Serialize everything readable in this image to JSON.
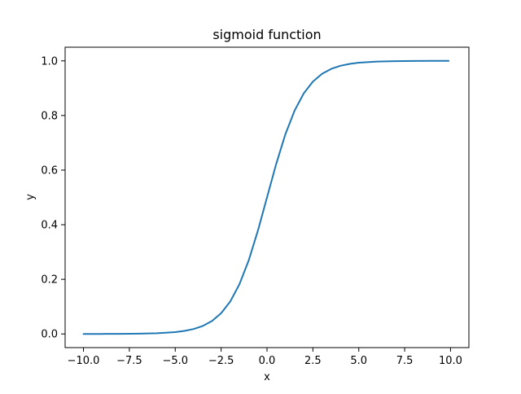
{
  "chart_data": {
    "type": "line",
    "title": "sigmoid function",
    "xlabel": "x",
    "ylabel": "y",
    "xlim": [
      -11.0,
      11.0
    ],
    "ylim": [
      -0.05,
      1.05
    ],
    "xticks": [
      -10.0,
      -7.5,
      -5.0,
      -2.5,
      0.0,
      2.5,
      5.0,
      7.5,
      10.0
    ],
    "xtick_labels": [
      "−10.0",
      "−7.5",
      "−5.0",
      "−2.5",
      "0.0",
      "2.5",
      "5.0",
      "7.5",
      "10.0"
    ],
    "yticks": [
      0.0,
      0.2,
      0.4,
      0.6,
      0.8,
      1.0
    ],
    "ytick_labels": [
      "0.0",
      "0.2",
      "0.4",
      "0.6",
      "0.8",
      "1.0"
    ],
    "grid": false,
    "series": [
      {
        "color": "#1f77b4",
        "x": [
          -10,
          -9,
          -8,
          -7,
          -6,
          -5,
          -4.5,
          -4,
          -3.5,
          -3,
          -2.5,
          -2,
          -1.5,
          -1,
          -0.5,
          0,
          0.5,
          1,
          1.5,
          2,
          2.5,
          3,
          3.5,
          4,
          4.5,
          5,
          6,
          7,
          8,
          9,
          9.9
        ],
        "y": [
          0.0,
          0.0001,
          0.0003,
          0.0009,
          0.0025,
          0.0067,
          0.011,
          0.018,
          0.0293,
          0.0474,
          0.0759,
          0.1192,
          0.1824,
          0.2689,
          0.3775,
          0.5,
          0.6225,
          0.7311,
          0.8176,
          0.8808,
          0.9241,
          0.9526,
          0.9707,
          0.982,
          0.989,
          0.9933,
          0.9975,
          0.9991,
          0.9997,
          0.9999,
          1.0
        ]
      }
    ]
  }
}
